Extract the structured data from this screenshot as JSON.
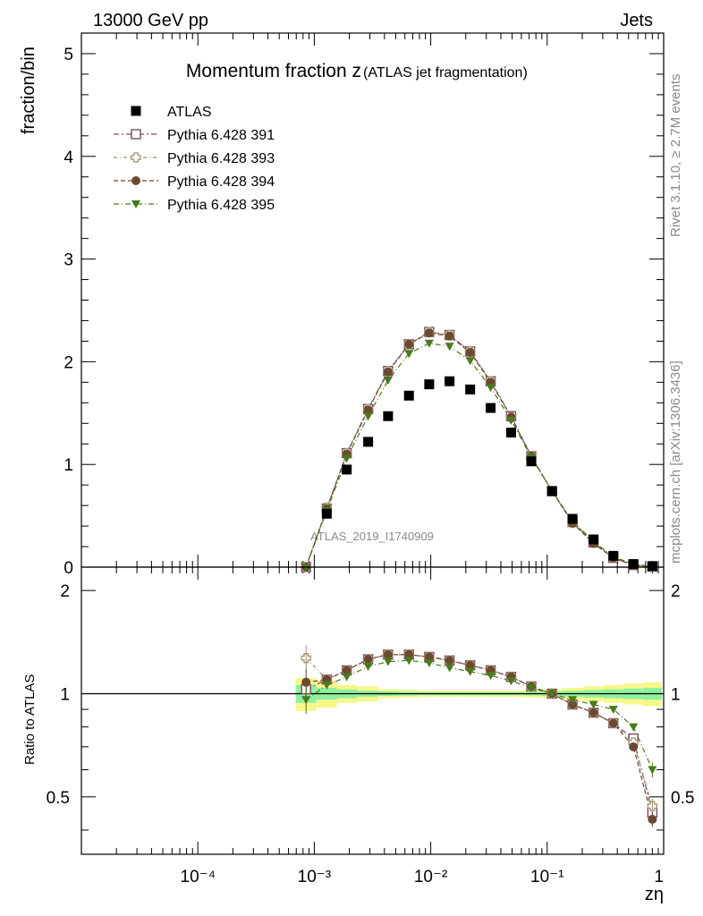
{
  "header": {
    "left": "13000 GeV pp",
    "right": "Jets"
  },
  "side_labels": {
    "top": "Rivet 3.1.10, ≥ 2.7M events",
    "bottom": "mcplots.cern.ch [arXiv:1306.3436]"
  },
  "chart_data": {
    "type": "scatter",
    "title": "Momentum fraction z",
    "title_suffix": "(ATLAS jet fragmentation)",
    "ylabel": "fraction/bin",
    "xlabel": "zη",
    "ratio_ylabel": "Ratio to ATLAS",
    "watermark": "ATLAS_2019_I1740909",
    "x_scale": "log",
    "xlim": [
      1e-05,
      1
    ],
    "ylim": [
      0,
      5.2
    ],
    "ratio_ylim": [
      0.34,
      2.34
    ],
    "x_tick_labels": [
      "10⁻⁴",
      "10⁻³",
      "10⁻²",
      "10⁻¹",
      "1"
    ],
    "y_tick_labels": [
      "0",
      "1",
      "2",
      "3",
      "4",
      "5"
    ],
    "ratio_tick_labels": [
      "0.5",
      "1",
      "2"
    ],
    "legend_position": "top-left",
    "x": [
      0.00085,
      0.00128,
      0.0019,
      0.0029,
      0.0043,
      0.0065,
      0.0097,
      0.0145,
      0.0218,
      0.0327,
      0.049,
      0.073,
      0.11,
      0.165,
      0.25,
      0.37,
      0.55,
      0.8
    ],
    "data": {
      "name": "ATLAS",
      "values": [
        0.0,
        0.52,
        0.95,
        1.22,
        1.47,
        1.67,
        1.78,
        1.81,
        1.73,
        1.55,
        1.31,
        1.03,
        0.74,
        0.47,
        0.27,
        0.11,
        0.03,
        0.01
      ],
      "band_inner": [
        0.06,
        0.04,
        0.03,
        0.02,
        0.015,
        0.012,
        0.01,
        0.01,
        0.01,
        0.01,
        0.01,
        0.012,
        0.015,
        0.02,
        0.025,
        0.03,
        0.035,
        0.04
      ],
      "band_outer": [
        0.11,
        0.09,
        0.06,
        0.05,
        0.03,
        0.025,
        0.02,
        0.02,
        0.02,
        0.02,
        0.02,
        0.025,
        0.03,
        0.04,
        0.05,
        0.06,
        0.07,
        0.08
      ]
    },
    "series": [
      {
        "name": "Pythia 6.428 391",
        "color": "#7b4a5c",
        "marker": "open-square",
        "values": [
          0.0,
          0.57,
          1.11,
          1.54,
          1.91,
          2.17,
          2.29,
          2.26,
          2.1,
          1.81,
          1.47,
          1.08,
          0.74,
          0.44,
          0.24,
          0.09,
          0.02,
          0.004
        ],
        "ratio": [
          1.03,
          1.1,
          1.17,
          1.26,
          1.3,
          1.3,
          1.28,
          1.25,
          1.21,
          1.17,
          1.12,
          1.05,
          1.0,
          0.93,
          0.88,
          0.82,
          0.74,
          0.45
        ]
      },
      {
        "name": "Pythia 6.428 393",
        "color": "#a09070",
        "marker": "open-cross",
        "values": [
          0.0,
          0.58,
          1.11,
          1.54,
          1.91,
          2.17,
          2.29,
          2.26,
          2.1,
          1.81,
          1.46,
          1.08,
          0.74,
          0.43,
          0.24,
          0.09,
          0.02,
          0.004
        ],
        "ratio": [
          1.27,
          1.1,
          1.17,
          1.26,
          1.3,
          1.3,
          1.28,
          1.25,
          1.21,
          1.17,
          1.12,
          1.05,
          1.0,
          0.93,
          0.88,
          0.82,
          0.72,
          0.47
        ]
      },
      {
        "name": "Pythia 6.428 394",
        "color": "#6b4a32",
        "marker": "filled-circle",
        "values": [
          0.0,
          0.57,
          1.1,
          1.53,
          1.9,
          2.17,
          2.28,
          2.25,
          2.09,
          1.8,
          1.46,
          1.08,
          0.74,
          0.43,
          0.23,
          0.09,
          0.02,
          0.004
        ],
        "ratio": [
          1.08,
          1.1,
          1.17,
          1.26,
          1.3,
          1.3,
          1.28,
          1.25,
          1.21,
          1.17,
          1.12,
          1.05,
          1.0,
          0.93,
          0.88,
          0.82,
          0.7,
          0.43
        ]
      },
      {
        "name": "Pythia 6.428 395",
        "color": "#4a7a1a",
        "marker": "filled-triangle-down",
        "values": [
          0.0,
          0.55,
          1.06,
          1.47,
          1.82,
          2.08,
          2.18,
          2.15,
          2.01,
          1.75,
          1.43,
          1.07,
          0.74,
          0.45,
          0.25,
          0.1,
          0.03,
          0.006
        ],
        "ratio": [
          0.96,
          1.06,
          1.12,
          1.2,
          1.24,
          1.25,
          1.23,
          1.19,
          1.16,
          1.13,
          1.09,
          1.04,
          1.0,
          0.96,
          0.93,
          0.9,
          0.8,
          0.6
        ]
      }
    ]
  }
}
